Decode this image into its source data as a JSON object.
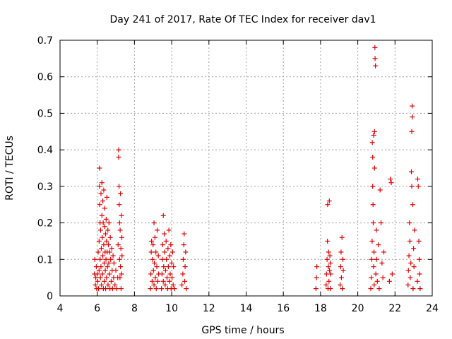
{
  "chart_data": {
    "type": "scatter",
    "title": "Day 241 of 2017, Rate Of TEC Index for receiver dav1",
    "xlabel": "GPS time / hours",
    "ylabel": "ROTI / TECUs",
    "xlim": [
      4,
      24
    ],
    "ylim": [
      0,
      0.7
    ],
    "xticks": [
      4,
      6,
      8,
      10,
      12,
      14,
      16,
      18,
      20,
      22,
      24
    ],
    "yticks": [
      0,
      0.1,
      0.2,
      0.3,
      0.4,
      0.5,
      0.6,
      0.7
    ],
    "grid": true,
    "legend": "none",
    "marker": "plus",
    "color": "#e00000",
    "series": [
      {
        "points": [
          [
            5.85,
            0.06
          ],
          [
            5.87,
            0.1
          ],
          [
            5.9,
            0.03
          ],
          [
            5.92,
            0.05
          ],
          [
            5.95,
            0.08
          ],
          [
            5.97,
            0.02
          ],
          [
            6.0,
            0.06
          ],
          [
            6.02,
            0.04
          ],
          [
            6.05,
            0.12
          ],
          [
            6.07,
            0.02
          ],
          [
            6.1,
            0.07
          ],
          [
            6.1,
            0.15
          ],
          [
            6.12,
            0.35
          ],
          [
            6.12,
            0.3
          ],
          [
            6.13,
            0.25
          ],
          [
            6.15,
            0.2
          ],
          [
            6.15,
            0.1
          ],
          [
            6.17,
            0.05
          ],
          [
            6.18,
            0.18
          ],
          [
            6.2,
            0.28
          ],
          [
            6.2,
            0.08
          ],
          [
            6.22,
            0.13
          ],
          [
            6.23,
            0.03
          ],
          [
            6.25,
            0.22
          ],
          [
            6.25,
            0.31
          ],
          [
            6.27,
            0.16
          ],
          [
            6.28,
            0.06
          ],
          [
            6.3,
            0.26
          ],
          [
            6.3,
            0.11
          ],
          [
            6.32,
            0.2
          ],
          [
            6.33,
            0.02
          ],
          [
            6.35,
            0.14
          ],
          [
            6.35,
            0.29
          ],
          [
            6.37,
            0.09
          ],
          [
            6.38,
            0.04
          ],
          [
            6.4,
            0.19
          ],
          [
            6.4,
            0.24
          ],
          [
            6.42,
            0.12
          ],
          [
            6.43,
            0.07
          ],
          [
            6.45,
            0.17
          ],
          [
            6.45,
            0.02
          ],
          [
            6.47,
            0.1
          ],
          [
            6.48,
            0.21
          ],
          [
            6.5,
            0.15
          ],
          [
            6.5,
            0.05
          ],
          [
            6.52,
            0.27
          ],
          [
            6.53,
            0.12
          ],
          [
            6.55,
            0.08
          ],
          [
            6.57,
            0.18
          ],
          [
            6.58,
            0.03
          ],
          [
            6.6,
            0.14
          ],
          [
            6.62,
            0.09
          ],
          [
            6.63,
            0.2
          ],
          [
            6.65,
            0.06
          ],
          [
            6.67,
            0.12
          ],
          [
            6.68,
            0.02
          ],
          [
            6.7,
            0.16
          ],
          [
            6.72,
            0.1
          ],
          [
            6.75,
            0.04
          ],
          [
            6.78,
            0.13
          ],
          [
            6.8,
            0.07
          ],
          [
            6.82,
            0.02
          ],
          [
            6.85,
            0.11
          ],
          [
            6.88,
            0.05
          ],
          [
            6.9,
            0.09
          ],
          [
            6.95,
            0.03
          ],
          [
            7.0,
            0.07
          ],
          [
            7.05,
            0.02
          ],
          [
            7.1,
            0.05
          ],
          [
            7.12,
            0.14
          ],
          [
            7.15,
            0.38
          ],
          [
            7.15,
            0.4
          ],
          [
            7.17,
            0.3
          ],
          [
            7.18,
            0.25
          ],
          [
            7.2,
            0.2
          ],
          [
            7.2,
            0.1
          ],
          [
            7.22,
            0.05
          ],
          [
            7.23,
            0.18
          ],
          [
            7.25,
            0.28
          ],
          [
            7.25,
            0.08
          ],
          [
            7.27,
            0.13
          ],
          [
            7.28,
            0.02
          ],
          [
            7.3,
            0.22
          ],
          [
            7.3,
            0.06
          ],
          [
            7.32,
            0.16
          ],
          [
            7.33,
            0.11
          ],
          [
            8.85,
            0.02
          ],
          [
            8.88,
            0.06
          ],
          [
            8.9,
            0.12
          ],
          [
            8.92,
            0.15
          ],
          [
            8.95,
            0.04
          ],
          [
            8.97,
            0.1
          ],
          [
            9.0,
            0.14
          ],
          [
            9.02,
            0.07
          ],
          [
            9.05,
            0.2
          ],
          [
            9.05,
            0.03
          ],
          [
            9.07,
            0.09
          ],
          [
            9.1,
            0.16
          ],
          [
            9.12,
            0.05
          ],
          [
            9.15,
            0.12
          ],
          [
            9.17,
            0.02
          ],
          [
            9.2,
            0.08
          ],
          [
            9.22,
            0.18
          ],
          [
            9.25,
            0.04
          ],
          [
            9.28,
            0.11
          ],
          [
            9.3,
            0.06
          ],
          [
            9.45,
            0.02
          ],
          [
            9.48,
            0.06
          ],
          [
            9.5,
            0.1
          ],
          [
            9.52,
            0.14
          ],
          [
            9.55,
            0.22
          ],
          [
            9.55,
            0.04
          ],
          [
            9.57,
            0.08
          ],
          [
            9.6,
            0.17
          ],
          [
            9.62,
            0.12
          ],
          [
            9.65,
            0.03
          ],
          [
            9.67,
            0.07
          ],
          [
            9.7,
            0.15
          ],
          [
            9.72,
            0.1
          ],
          [
            9.75,
            0.05
          ],
          [
            9.78,
            0.02
          ],
          [
            9.8,
            0.13
          ],
          [
            9.82,
            0.08
          ],
          [
            9.85,
            0.18
          ],
          [
            9.87,
            0.04
          ],
          [
            9.9,
            0.11
          ],
          [
            9.92,
            0.06
          ],
          [
            9.95,
            0.14
          ],
          [
            9.97,
            0.02
          ],
          [
            10.0,
            0.09
          ],
          [
            10.02,
            0.05
          ],
          [
            10.05,
            0.12
          ],
          [
            10.08,
            0.03
          ],
          [
            10.1,
            0.08
          ],
          [
            10.15,
            0.02
          ],
          [
            10.55,
            0.03
          ],
          [
            10.6,
            0.06
          ],
          [
            10.62,
            0.1
          ],
          [
            10.65,
            0.14
          ],
          [
            10.67,
            0.17
          ],
          [
            10.7,
            0.04
          ],
          [
            10.72,
            0.08
          ],
          [
            10.75,
            0.12
          ],
          [
            10.78,
            0.02
          ],
          [
            17.75,
            0.02
          ],
          [
            17.78,
            0.05
          ],
          [
            17.8,
            0.08
          ],
          [
            18.3,
            0.03
          ],
          [
            18.32,
            0.06
          ],
          [
            18.35,
            0.1
          ],
          [
            18.37,
            0.15
          ],
          [
            18.38,
            0.25
          ],
          [
            18.4,
            0.02
          ],
          [
            18.42,
            0.08
          ],
          [
            18.43,
            0.12
          ],
          [
            18.45,
            0.04
          ],
          [
            18.47,
            0.26
          ],
          [
            18.48,
            0.07
          ],
          [
            18.5,
            0.11
          ],
          [
            18.52,
            0.02
          ],
          [
            18.53,
            0.09
          ],
          [
            18.55,
            0.06
          ],
          [
            19.05,
            0.03
          ],
          [
            19.08,
            0.08
          ],
          [
            19.1,
            0.12
          ],
          [
            19.12,
            0.05
          ],
          [
            19.15,
            0.16
          ],
          [
            19.17,
            0.02
          ],
          [
            19.2,
            0.1
          ],
          [
            19.22,
            0.07
          ],
          [
            20.7,
            0.02
          ],
          [
            20.72,
            0.05
          ],
          [
            20.75,
            0.1
          ],
          [
            20.77,
            0.15
          ],
          [
            20.78,
            0.42
          ],
          [
            20.8,
            0.38
          ],
          [
            20.8,
            0.3
          ],
          [
            20.82,
            0.25
          ],
          [
            20.83,
            0.2
          ],
          [
            20.85,
            0.44
          ],
          [
            20.85,
            0.08
          ],
          [
            20.87,
            0.12
          ],
          [
            20.88,
            0.03
          ],
          [
            20.9,
            0.35
          ],
          [
            20.9,
            0.45
          ],
          [
            20.92,
            0.68
          ],
          [
            20.93,
            0.65
          ],
          [
            20.95,
            0.63
          ],
          [
            20.97,
            0.06
          ],
          [
            21.0,
            0.18
          ],
          [
            21.02,
            0.1
          ],
          [
            21.05,
            0.04
          ],
          [
            21.1,
            0.14
          ],
          [
            21.15,
            0.02
          ],
          [
            21.2,
            0.29
          ],
          [
            21.25,
            0.2
          ],
          [
            21.3,
            0.09
          ],
          [
            21.35,
            0.05
          ],
          [
            21.4,
            0.12
          ],
          [
            21.7,
            0.04
          ],
          [
            21.75,
            0.32
          ],
          [
            21.8,
            0.31
          ],
          [
            21.85,
            0.06
          ],
          [
            22.7,
            0.03
          ],
          [
            22.72,
            0.07
          ],
          [
            22.75,
            0.11
          ],
          [
            22.78,
            0.2
          ],
          [
            22.8,
            0.15
          ],
          [
            22.82,
            0.05
          ],
          [
            22.85,
            0.09
          ],
          [
            22.88,
            0.34
          ],
          [
            22.9,
            0.3
          ],
          [
            22.9,
            0.45
          ],
          [
            22.92,
            0.52
          ],
          [
            22.93,
            0.49
          ],
          [
            22.95,
            0.25
          ],
          [
            22.97,
            0.02
          ],
          [
            23.0,
            0.13
          ],
          [
            23.02,
            0.08
          ],
          [
            23.05,
            0.18
          ],
          [
            23.2,
            0.04
          ],
          [
            23.22,
            0.32
          ],
          [
            23.25,
            0.3
          ],
          [
            23.28,
            0.15
          ],
          [
            23.3,
            0.1
          ],
          [
            23.32,
            0.06
          ],
          [
            23.35,
            0.02
          ]
        ]
      }
    ]
  }
}
